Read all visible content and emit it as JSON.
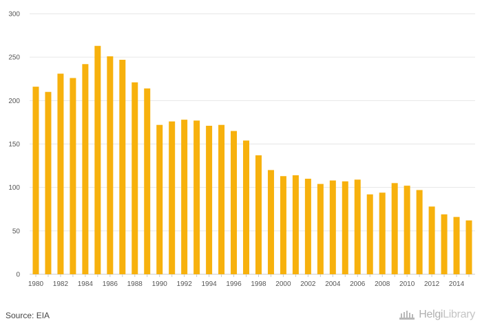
{
  "chart_data": {
    "type": "bar",
    "categories": [
      "1980",
      "1981",
      "1982",
      "1983",
      "1984",
      "1985",
      "1986",
      "1987",
      "1988",
      "1989",
      "1990",
      "1991",
      "1992",
      "1993",
      "1994",
      "1995",
      "1996",
      "1997",
      "1998",
      "1999",
      "2000",
      "2001",
      "2002",
      "2003",
      "2004",
      "2005",
      "2006",
      "2007",
      "2008",
      "2009",
      "2010",
      "2011",
      "2012",
      "2013",
      "2014",
      "2015"
    ],
    "values": [
      216,
      210,
      231,
      226,
      242,
      263,
      251,
      247,
      221,
      214,
      172,
      176,
      178,
      177,
      171,
      172,
      165,
      154,
      137,
      120,
      113,
      114,
      110,
      104,
      108,
      107,
      109,
      92,
      94,
      105,
      102,
      97,
      78,
      69,
      66,
      62
    ],
    "x_tick_labels": [
      "1980",
      "1982",
      "1984",
      "1986",
      "1988",
      "1990",
      "1992",
      "1994",
      "1996",
      "1998",
      "2000",
      "2002",
      "2004",
      "2006",
      "2008",
      "2010",
      "2012",
      "2014"
    ],
    "y_ticks": [
      0,
      50,
      100,
      150,
      200,
      250,
      300
    ],
    "ylim": [
      0,
      300
    ],
    "grid": true,
    "legend": "none",
    "bar_color": "#f7b10d",
    "title": "",
    "xlabel": "",
    "ylabel": ""
  },
  "footer": {
    "source": "Source: EIA",
    "brand_main": "Helgi",
    "brand_sub": "Library",
    "brand_icon": "helgi-logo-icon"
  }
}
